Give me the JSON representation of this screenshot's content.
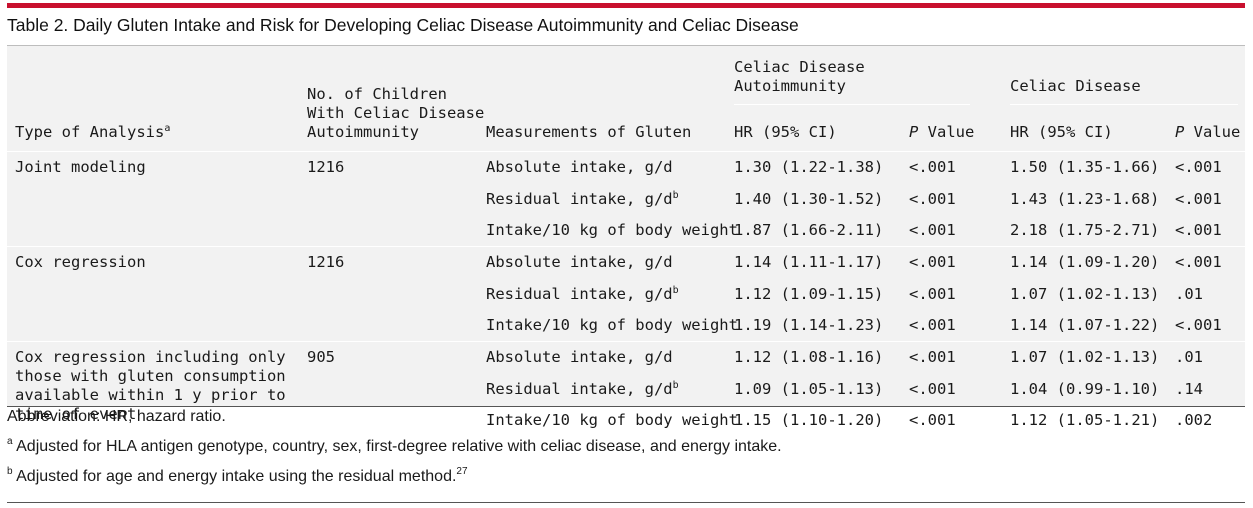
{
  "title": "Table 2. Daily Gluten Intake and Risk for Developing Celiac Disease Autoimmunity and Celiac Disease",
  "headers": {
    "type": "Type of Analysis",
    "type_sup": "a",
    "n_line1": "No. of Children",
    "n_line2": "With Celiac Disease",
    "n_line3": "Autoimmunity",
    "measure": "Measurements of Gluten",
    "group_cda": "Celiac Disease Autoimmunity",
    "group_cd": "Celiac Disease",
    "hr": "HR (95% CI)",
    "p_italic": "P",
    "p_rest": " Value"
  },
  "groups": [
    {
      "type": "Joint modeling",
      "n": "1216",
      "rows": [
        {
          "measure": "Absolute intake, g/d",
          "sup": "",
          "cda_hr": "1.30 (1.22-1.38)",
          "cda_p": "<.001",
          "cd_hr": "1.50 (1.35-1.66)",
          "cd_p": "<.001"
        },
        {
          "measure": "Residual intake, g/d",
          "sup": "b",
          "cda_hr": "1.40 (1.30-1.52)",
          "cda_p": "<.001",
          "cd_hr": "1.43 (1.23-1.68)",
          "cd_p": "<.001"
        },
        {
          "measure": "Intake/10 kg of body weight",
          "sup": "",
          "cda_hr": "1.87 (1.66-2.11)",
          "cda_p": "<.001",
          "cd_hr": "2.18 (1.75-2.71)",
          "cd_p": "<.001"
        }
      ]
    },
    {
      "type": "Cox regression",
      "n": "1216",
      "rows": [
        {
          "measure": "Absolute intake, g/d",
          "sup": "",
          "cda_hr": "1.14 (1.11-1.17)",
          "cda_p": "<.001",
          "cd_hr": "1.14 (1.09-1.20)",
          "cd_p": "<.001"
        },
        {
          "measure": "Residual intake, g/d",
          "sup": "b",
          "cda_hr": "1.12 (1.09-1.15)",
          "cda_p": "<.001",
          "cd_hr": "1.07 (1.02-1.13)",
          "cd_p": ".01"
        },
        {
          "measure": "Intake/10 kg of body weight",
          "sup": "",
          "cda_hr": "1.19 (1.14-1.23)",
          "cda_p": "<.001",
          "cd_hr": "1.14 (1.07-1.22)",
          "cd_p": "<.001"
        }
      ]
    },
    {
      "type": "Cox regression including only those with gluten consumption available within 1 y prior to time of event",
      "n": "905",
      "rows": [
        {
          "measure": "Absolute intake, g/d",
          "sup": "",
          "cda_hr": "1.12 (1.08-1.16)",
          "cda_p": "<.001",
          "cd_hr": "1.07 (1.02-1.13)",
          "cd_p": ".01"
        },
        {
          "measure": "Residual intake, g/d",
          "sup": "b",
          "cda_hr": "1.09 (1.05-1.13)",
          "cda_p": "<.001",
          "cd_hr": "1.04 (0.99-1.10)",
          "cd_p": ".14"
        },
        {
          "measure": "Intake/10 kg of body weight",
          "sup": "",
          "cda_hr": "1.15 (1.10-1.20)",
          "cda_p": "<.001",
          "cd_hr": "1.12 (1.05-1.21)",
          "cd_p": ".002"
        }
      ]
    }
  ],
  "footnotes": {
    "abbrev": "Abbreviation: HR, hazard ratio.",
    "a_mark": "a",
    "a_text": " Adjusted for HLA antigen genotype, country, sex, first-degree relative with celiac disease, and energy intake.",
    "b_mark": "b",
    "b_text": " Adjusted for age and energy intake using the residual method.",
    "b_ref": "27"
  },
  "colors": {
    "accent_rule": "#c8102e",
    "table_bg": "#f2f2f2"
  }
}
